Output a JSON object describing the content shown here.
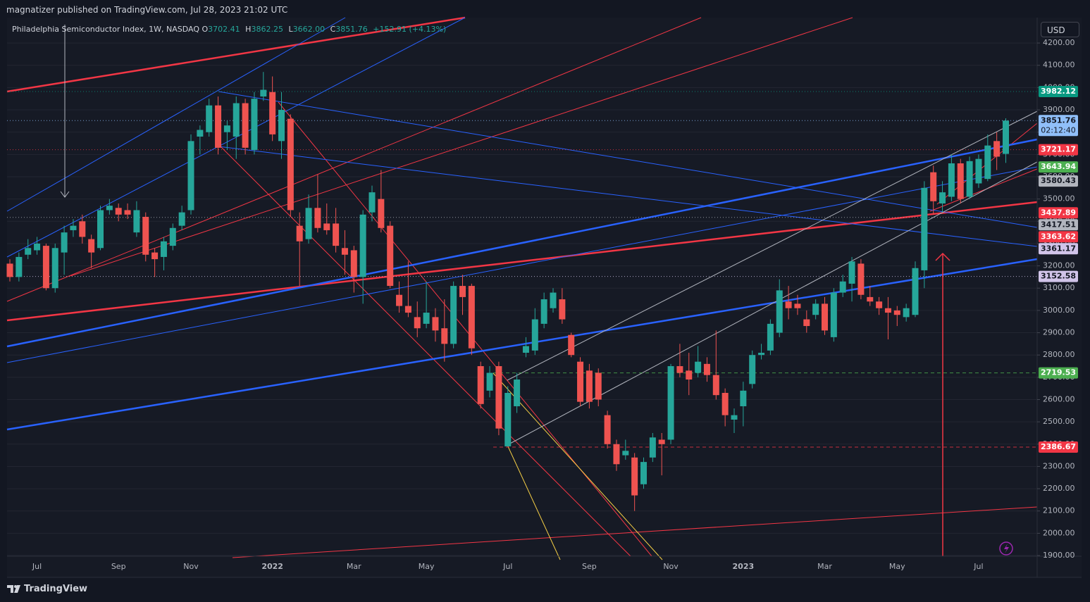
{
  "header": {
    "published": "magnatizer published on TradingView.com, Jul 28, 2023 21:02 UTC",
    "legend": {
      "symbol": "Philadelphia Semiconductor Index, 1W, NASDAQ",
      "open_label": "O",
      "open": "3702.41",
      "high_label": "H",
      "high": "3862.25",
      "low_label": "L",
      "low": "3662.00",
      "close_label": "C",
      "close": "3851.76",
      "change": "+152.91 (+4.13%)"
    },
    "currency": "USD"
  },
  "footer": {
    "brand": "TradingView"
  },
  "chart_data": {
    "type": "candlestick",
    "up_color": "#26a69a",
    "down_color": "#ef5350",
    "grid": true,
    "categories": [
      null,
      null,
      null,
      "Jul",
      null,
      null,
      null,
      null,
      null,
      null,
      null,
      null,
      "Sep",
      null,
      null,
      null,
      null,
      null,
      null,
      null,
      "Nov",
      null,
      null,
      null,
      null,
      null,
      null,
      null,
      null,
      "2022",
      null,
      null,
      null,
      null,
      null,
      null,
      null,
      null,
      "Mar",
      null,
      null,
      null,
      null,
      null,
      null,
      null,
      "May",
      null,
      null,
      null,
      null,
      null,
      null,
      null,
      null,
      "Jul",
      null,
      null,
      null,
      null,
      null,
      null,
      null,
      null,
      "Sep",
      null,
      null,
      null,
      null,
      null,
      null,
      null,
      null,
      "Nov",
      null,
      null,
      null,
      null,
      null,
      null,
      null,
      "2023",
      null,
      null,
      null,
      null,
      null,
      null,
      null,
      null,
      "Mar",
      null,
      null,
      null,
      null,
      null,
      null,
      null,
      "May",
      null,
      null,
      null,
      null,
      null,
      null,
      null,
      null,
      "Jul",
      null,
      null,
      null
    ],
    "open": [
      3210,
      3150,
      3250,
      3270,
      3290,
      3100,
      3260,
      3360,
      3400,
      3320,
      3280,
      3450,
      3460,
      3450,
      3350,
      3420,
      3260,
      3240,
      3290,
      3380,
      3450,
      3780,
      3800,
      3920,
      3800,
      3780,
      3930,
      3720,
      3960,
      3980,
      3760,
      3860,
      3380,
      3320,
      3460,
      3390,
      3390,
      3280,
      3270,
      3150,
      3440,
      3500,
      3380,
      3070,
      3020,
      2970,
      2940,
      2970,
      2920,
      2850,
      3110,
      3110,
      2750,
      2640,
      2750,
      2390,
      2570,
      2810,
      2820,
      2940,
      3010,
      3050,
      2890,
      2770,
      2730,
      2720,
      2530,
      2400,
      2350,
      2340,
      2220,
      2340,
      2420,
      2420,
      2750,
      2730,
      2720,
      2760,
      2710,
      2630,
      2510,
      2570,
      2670,
      2800,
      2820,
      2900,
      3040,
      3030,
      2960,
      2980,
      3030,
      2880,
      3080,
      3120,
      3210,
      3060,
      3040,
      3010,
      3000,
      2970,
      2980,
      3180,
      3620,
      3480,
      3510,
      3660,
      3510,
      3570,
      3590,
      3760,
      3702.41
    ],
    "high": [
      3230,
      3260,
      3320,
      3330,
      3300,
      3300,
      3380,
      3410,
      3430,
      3340,
      3470,
      3500,
      3480,
      3480,
      3490,
      3440,
      3280,
      3330,
      3390,
      3470,
      3790,
      3830,
      3950,
      3960,
      3850,
      3960,
      3950,
      3980,
      4070,
      4050,
      3980,
      3880,
      3440,
      3520,
      3610,
      3480,
      3460,
      3360,
      3290,
      3450,
      3560,
      3630,
      3400,
      3130,
      3220,
      3040,
      3130,
      3010,
      3050,
      3130,
      3160,
      3120,
      2770,
      2750,
      2770,
      2660,
      2720,
      2880,
      3010,
      3080,
      3100,
      3100,
      2900,
      2790,
      2760,
      2740,
      2550,
      2420,
      2420,
      2360,
      2340,
      2450,
      2450,
      2760,
      2850,
      2810,
      2840,
      2790,
      2910,
      2650,
      2560,
      2680,
      2820,
      2850,
      2960,
      3140,
      3110,
      3070,
      3000,
      3050,
      3060,
      3100,
      3160,
      3240,
      3230,
      3110,
      3060,
      3060,
      3020,
      3030,
      3220,
      3580,
      3650,
      3580,
      3700,
      3680,
      3690,
      3700,
      3790,
      3800,
      3862.25
    ],
    "low": [
      3130,
      3130,
      3230,
      3250,
      3090,
      3080,
      3160,
      3330,
      3300,
      3190,
      3270,
      3430,
      3400,
      3410,
      3330,
      3220,
      3150,
      3180,
      3270,
      3360,
      3430,
      3700,
      3780,
      3700,
      3720,
      3680,
      3700,
      3700,
      3940,
      3760,
      3680,
      3420,
      3110,
      3300,
      3350,
      3340,
      3260,
      3160,
      3080,
      3030,
      3400,
      3350,
      3100,
      2990,
      2970,
      2880,
      2920,
      2860,
      2770,
      2830,
      2980,
      2800,
      2560,
      2610,
      2440,
      2390,
      2540,
      2790,
      2800,
      2920,
      2990,
      2940,
      2790,
      2570,
      2560,
      2570,
      2380,
      2280,
      2330,
      2100,
      2200,
      2320,
      2260,
      2400,
      2700,
      2620,
      2700,
      2680,
      2600,
      2480,
      2450,
      2480,
      2650,
      2780,
      2800,
      2880,
      2960,
      2980,
      2900,
      2960,
      2890,
      2860,
      3060,
      3040,
      3050,
      3020,
      2980,
      2870,
      2930,
      2950,
      2970,
      3100,
      3430,
      3440,
      3490,
      3480,
      3500,
      3550,
      3580,
      3630,
      3662.0
    ],
    "close": [
      3150,
      3240,
      3280,
      3300,
      3100,
      3280,
      3350,
      3380,
      3330,
      3260,
      3450,
      3470,
      3430,
      3430,
      3450,
      3250,
      3230,
      3310,
      3370,
      3440,
      3760,
      3810,
      3920,
      3730,
      3830,
      3930,
      3730,
      3950,
      3990,
      3790,
      3900,
      3450,
      3310,
      3460,
      3370,
      3360,
      3290,
      3250,
      3150,
      3430,
      3530,
      3370,
      3110,
      3020,
      2990,
      2920,
      2990,
      2910,
      2850,
      3110,
      3060,
      2830,
      2580,
      2720,
      2470,
      2630,
      2690,
      2840,
      2960,
      3050,
      3080,
      2960,
      2800,
      2590,
      2590,
      2600,
      2400,
      2310,
      2370,
      2170,
      2320,
      2430,
      2400,
      2750,
      2720,
      2690,
      2770,
      2710,
      2620,
      2530,
      2530,
      2640,
      2800,
      2810,
      2940,
      3090,
      3010,
      3010,
      2930,
      3030,
      2910,
      3080,
      3130,
      3220,
      3070,
      3040,
      3010,
      2990,
      2980,
      3010,
      3190,
      3550,
      3490,
      3530,
      3660,
      3500,
      3670,
      3680,
      3740,
      3690,
      3851.76
    ],
    "ylim": [
      1897,
      4314
    ],
    "yticks": [
      {
        "value": 1900,
        "label": "1900.00"
      },
      {
        "value": 2000,
        "label": "2000.00"
      },
      {
        "value": 2100,
        "label": "2100.00"
      },
      {
        "value": 2200,
        "label": "2200.00"
      },
      {
        "value": 2300,
        "label": "2300.00"
      },
      {
        "value": 2400,
        "label": "2400.00"
      },
      {
        "value": 2500,
        "label": "2500.00"
      },
      {
        "value": 2600,
        "label": "2600.00"
      },
      {
        "value": 2700,
        "label": "2700.00"
      },
      {
        "value": 2800,
        "label": "2800.00"
      },
      {
        "value": 2900,
        "label": "2900.00"
      },
      {
        "value": 3000,
        "label": "3000.00"
      },
      {
        "value": 3100,
        "label": "3100.00"
      },
      {
        "value": 3200,
        "label": "3200.00"
      },
      {
        "value": 3300,
        "label": "3300.00"
      },
      {
        "value": 3400,
        "label": "3400.00"
      },
      {
        "value": 3500,
        "label": "3500.00"
      },
      {
        "value": 3600,
        "label": "3600.00"
      },
      {
        "value": 3700,
        "label": "3700.00"
      },
      {
        "value": 3800,
        "label": "3800.00"
      },
      {
        "value": 3900,
        "label": "3900.00"
      },
      {
        "value": 4000,
        "label": "4000.00"
      },
      {
        "value": 4100,
        "label": "4100.00"
      },
      {
        "value": 4200,
        "label": "4200.00"
      }
    ],
    "price_labels": [
      {
        "value": 3982.12,
        "color": "#089981",
        "text_color": "#ffffff",
        "line": "dotted"
      },
      {
        "value": 3851.76,
        "countdown": "02:12:40",
        "color": "#90bff9",
        "text_color": "#131722",
        "line": "dotted"
      },
      {
        "value": 3721.17,
        "color": "#f23645",
        "text_color": "#ffffff",
        "line": "dotted"
      },
      {
        "value": 3643.94,
        "color": "#4caf50",
        "text_color": "#ffffff"
      },
      {
        "value": 3580.43,
        "color": "#b2b5be",
        "text_color": "#131722"
      },
      {
        "value": 3437.89,
        "color": "#f23645",
        "text_color": "#ffffff"
      },
      {
        "value": 3417.51,
        "color": "#b2b5be",
        "text_color": "#131722",
        "line": "dotted"
      },
      {
        "value": 3363.62,
        "color": "#f23645",
        "text_color": "#ffffff"
      },
      {
        "value": 3361.17,
        "color": "#d1c4e9",
        "text_color": "#131722"
      },
      {
        "value": 3152.58,
        "color": "#d1c4e9",
        "text_color": "#131722",
        "line": "dotted"
      },
      {
        "value": 2719.53,
        "color": "#4caf50",
        "text_color": "#ffffff",
        "line": "dashed"
      },
      {
        "value": 2386.67,
        "color": "#f23645",
        "text_color": "#ffffff",
        "line": "dashed"
      }
    ]
  }
}
